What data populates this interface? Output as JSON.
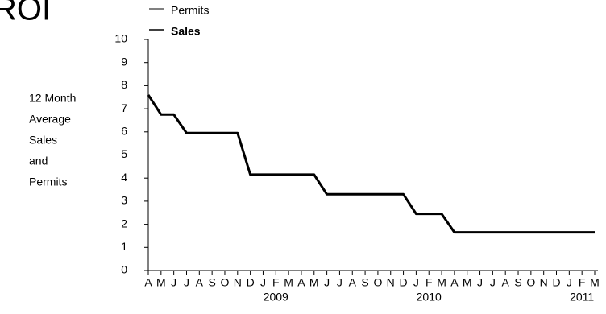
{
  "chart_data": {
    "type": "line",
    "title": "ROI",
    "ylabel": [
      "12 Month",
      "Average",
      "Sales",
      "and",
      "Permits"
    ],
    "categories": [
      "A",
      "M",
      "J",
      "J",
      "A",
      "S",
      "O",
      "N",
      "D",
      "J",
      "F",
      "M",
      "A",
      "M",
      "J",
      "J",
      "A",
      "S",
      "O",
      "N",
      "D",
      "J",
      "F",
      "M",
      "A",
      "M",
      "J",
      "J",
      "A",
      "S",
      "O",
      "N",
      "D",
      "J",
      "F",
      "M"
    ],
    "year_labels": [
      null,
      null,
      null,
      null,
      null,
      null,
      null,
      null,
      null,
      null,
      "2009",
      null,
      null,
      null,
      null,
      null,
      null,
      null,
      null,
      null,
      null,
      null,
      "2010",
      null,
      null,
      null,
      null,
      null,
      null,
      null,
      null,
      null,
      null,
      null,
      "2011",
      null
    ],
    "series": [
      {
        "name": "Permits",
        "color": "#000000",
        "values": [
          null,
          null,
          null,
          null,
          null,
          null,
          null,
          null,
          null,
          null,
          null,
          null,
          null,
          null,
          null,
          null,
          null,
          null,
          null,
          null,
          null,
          null,
          null,
          null,
          null,
          null,
          null,
          null,
          null,
          null,
          null,
          null,
          null,
          null,
          null,
          null
        ]
      },
      {
        "name": "Sales",
        "color": "#000000",
        "values": [
          7.6,
          6.75,
          6.75,
          5.95,
          5.95,
          5.95,
          5.95,
          5.95,
          4.15,
          4.15,
          4.15,
          4.15,
          4.15,
          4.15,
          3.3,
          3.3,
          3.3,
          3.3,
          3.3,
          3.3,
          3.3,
          2.45,
          2.45,
          2.45,
          1.65,
          1.65,
          1.65,
          1.65,
          1.65,
          1.65,
          1.65,
          1.65,
          1.65,
          1.65,
          1.65,
          1.65
        ]
      }
    ],
    "ylim": [
      0,
      10
    ],
    "yticks": [
      0,
      1,
      2,
      3,
      4,
      5,
      6,
      7,
      8,
      9,
      10
    ]
  }
}
